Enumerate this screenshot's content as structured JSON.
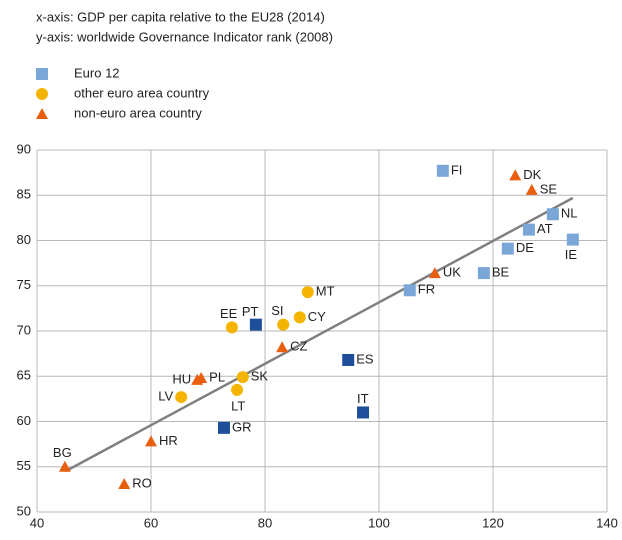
{
  "chart_data": {
    "type": "scatter",
    "subtitle_lines": [
      "x-axis: GDP per capita relative to the EU28 (2014)",
      "y-axis: worldwide Governance Indicator rank (2008)"
    ],
    "series": [
      {
        "name": "Euro 12",
        "marker": "square",
        "color": "#7ba7d8",
        "point_colors": [
          "#7ba7d8",
          "#7ba7d8",
          "#7ba7d8",
          "#7ba7d8",
          "#7ba7d8",
          "#7ba7d8",
          "#7ba7d8",
          "#1f4e9a",
          "#1f4e9a",
          "#1f4e9a",
          "#1f4e9a"
        ],
        "labels": [
          "FI",
          "NL",
          "AT",
          "DE",
          "IE",
          "BE",
          "FR",
          "PT",
          "ES",
          "IT",
          "GR"
        ],
        "x": [
          111.2,
          130.5,
          126.3,
          122.6,
          134.0,
          118.4,
          105.4,
          78.4,
          94.6,
          97.2,
          72.8
        ],
        "values": [
          87.7,
          82.9,
          81.2,
          79.1,
          80.1,
          76.4,
          74.5,
          70.7,
          66.8,
          61.0,
          59.3
        ]
      },
      {
        "name": "other euro area country",
        "marker": "circle",
        "color": "#f4b400",
        "labels": [
          "EE",
          "SI",
          "CY",
          "MT",
          "SK",
          "LT",
          "LV"
        ],
        "x": [
          74.2,
          83.2,
          86.1,
          87.5,
          76.1,
          75.1,
          65.3
        ],
        "values": [
          70.4,
          70.7,
          71.5,
          74.3,
          64.9,
          63.5,
          62.7
        ]
      },
      {
        "name": "non-euro area country",
        "marker": "triangle",
        "color": "#e8600f",
        "labels": [
          "DK",
          "SE",
          "UK",
          "CZ",
          "PL",
          "HU",
          "HR",
          "BG",
          "RO"
        ],
        "x": [
          123.9,
          126.8,
          109.8,
          83.0,
          68.8,
          68.1,
          60.0,
          44.9,
          55.3
        ],
        "values": [
          87.2,
          85.6,
          76.4,
          68.2,
          64.8,
          64.6,
          57.8,
          55.0,
          53.1
        ]
      }
    ],
    "trendline": {
      "color": "#808080",
      "x": [
        45,
        134
      ],
      "values": [
        54.5,
        84.7
      ]
    },
    "xlim": [
      40,
      140
    ],
    "xticks": [
      40,
      60,
      80,
      100,
      120,
      140
    ],
    "ylim": [
      50,
      90
    ],
    "yticks": [
      50,
      55,
      60,
      65,
      70,
      75,
      80,
      85,
      90
    ],
    "grid": true
  }
}
